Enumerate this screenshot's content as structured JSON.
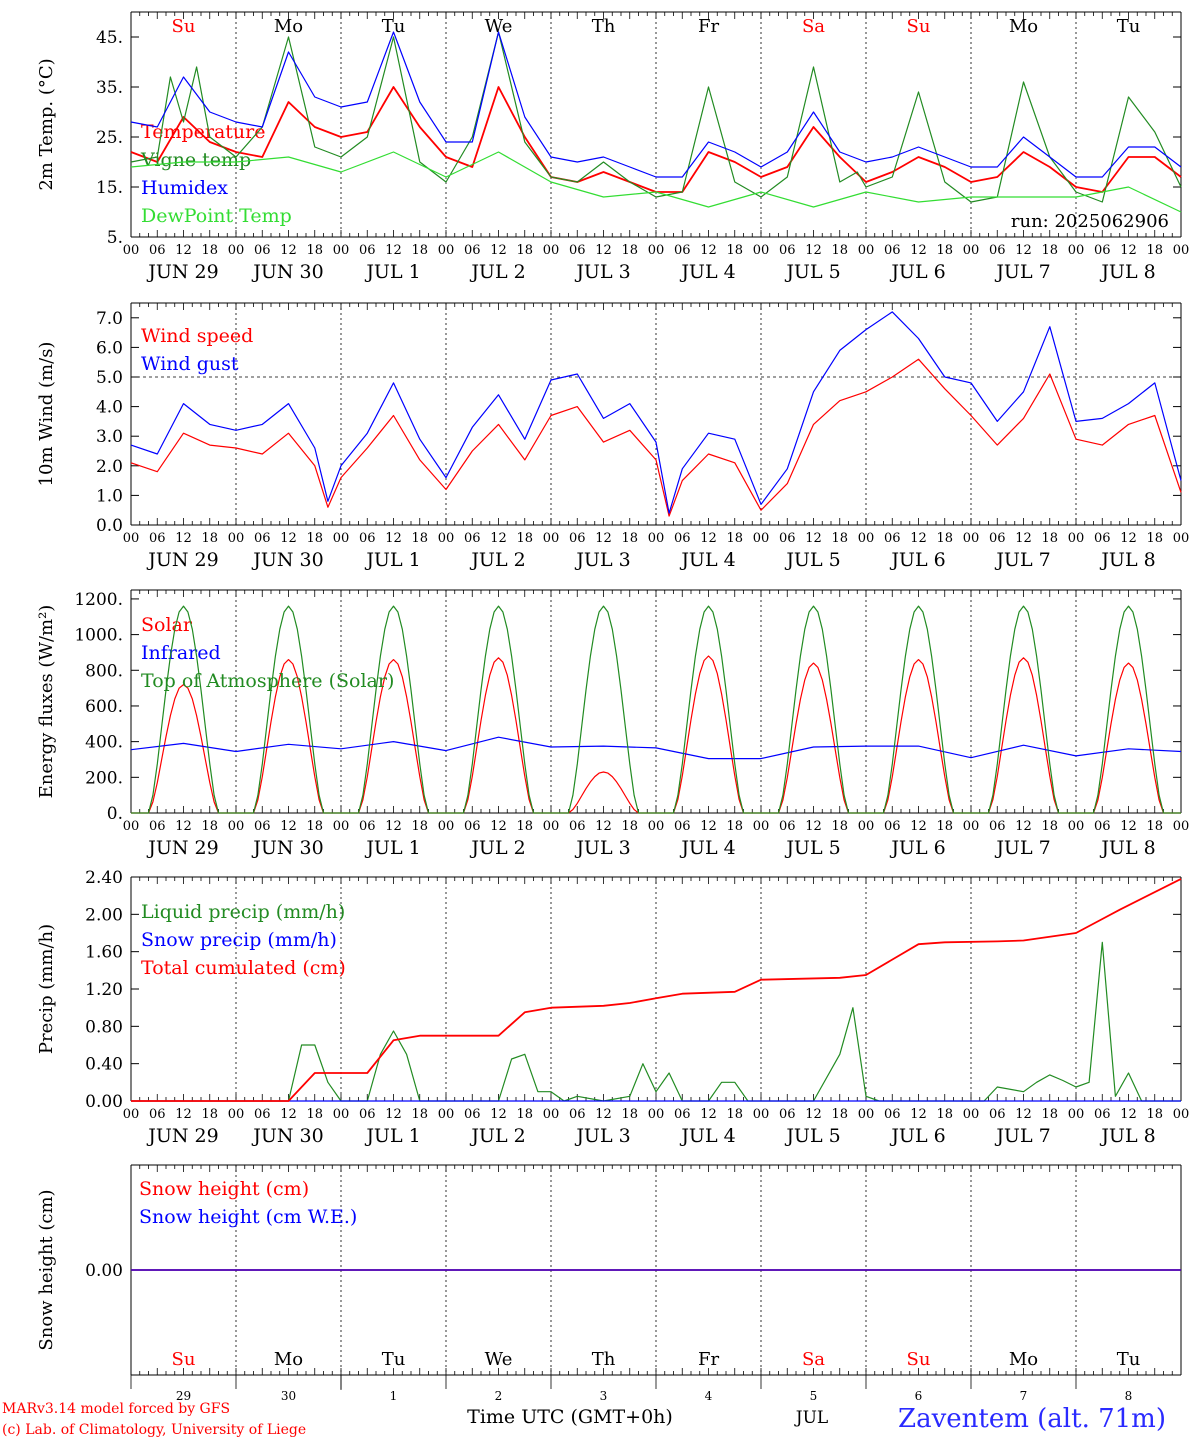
{
  "days": {
    "weekdays": [
      "Su",
      "Mo",
      "Tu",
      "We",
      "Th",
      "Fr",
      "Sa",
      "Su",
      "Mo",
      "Tu"
    ],
    "weekday_colors": [
      "#ff0000",
      "#000000",
      "#000000",
      "#000000",
      "#000000",
      "#000000",
      "#ff0000",
      "#ff0000",
      "#000000",
      "#000000"
    ],
    "date_labels": [
      "JUN 29",
      "JUN 30",
      "JUL  1",
      "JUL  2",
      "JUL  3",
      "JUL  4",
      "JUL  5",
      "JUL  6",
      "JUL  7",
      "JUL  8"
    ],
    "hour_ticks": [
      "00",
      "06",
      "12",
      "18"
    ],
    "final_hour": "00",
    "bottom_day_numbers": [
      "29",
      "30",
      "1",
      "2",
      "3",
      "4",
      "5",
      "6",
      "7",
      "8"
    ]
  },
  "footer": {
    "line1": "MARv3.14 model forced by GFS",
    "line2": "(c) Lab. of Climatology, University of Liege",
    "time_label": "Time UTC (GMT+0h)",
    "month": "JUL",
    "station": "Zaventem (alt. 71m)"
  },
  "colors": {
    "red": "#ff0000",
    "green": "#228b22",
    "blue": "#0000ff",
    "lightgreen": "#33dd33"
  },
  "chart_data": [
    {
      "type": "line",
      "ylabel": "2m Temp. (°C)",
      "ylim": [
        5,
        50
      ],
      "yticks": [
        "5.",
        "15.",
        "25.",
        "35.",
        "45."
      ],
      "ytick_values": [
        5,
        15,
        25,
        35,
        45
      ],
      "annotation": "run: 2025062906",
      "x_unit": "hours since JUN 29 00 UTC",
      "series": [
        {
          "name": "Temperature",
          "color": "#ff0000",
          "x": [
            0,
            6,
            12,
            18,
            24,
            30,
            36,
            42,
            48,
            54,
            60,
            66,
            72,
            78,
            84,
            90,
            96,
            102,
            108,
            114,
            120,
            126,
            132,
            138,
            144,
            150,
            156,
            162,
            168,
            174,
            180,
            186,
            192,
            198,
            204,
            210,
            216,
            222,
            228,
            234,
            240
          ],
          "y": [
            22,
            20,
            29,
            24,
            22,
            21,
            32,
            27,
            25,
            26,
            35,
            27,
            21,
            19,
            35,
            25,
            17,
            16,
            18,
            16,
            14,
            14,
            22,
            20,
            17,
            19,
            27,
            21,
            16,
            18,
            21,
            19,
            16,
            17,
            22,
            19,
            15,
            14,
            21,
            21,
            17
          ]
        },
        {
          "name": "Vigne temp",
          "color": "#228b22",
          "x": [
            0,
            6,
            9,
            12,
            15,
            18,
            24,
            30,
            36,
            42,
            48,
            54,
            60,
            66,
            72,
            78,
            84,
            90,
            96,
            102,
            108,
            114,
            120,
            126,
            132,
            138,
            144,
            150,
            156,
            162,
            166,
            168,
            174,
            180,
            186,
            192,
            198,
            204,
            210,
            216,
            222,
            228,
            234,
            240
          ],
          "y": [
            20,
            21,
            37,
            28,
            39,
            25,
            21,
            27,
            45,
            23,
            21,
            25,
            45,
            20,
            16,
            25,
            46,
            24,
            17,
            16,
            20,
            16,
            13,
            14,
            35,
            16,
            13,
            17,
            39,
            16,
            18,
            15,
            17,
            34,
            16,
            12,
            13,
            36,
            21,
            14,
            12,
            33,
            26,
            15
          ]
        },
        {
          "name": "Humidex",
          "color": "#0000ff",
          "x": [
            0,
            6,
            12,
            18,
            24,
            30,
            36,
            42,
            48,
            54,
            60,
            66,
            72,
            78,
            84,
            90,
            96,
            102,
            108,
            114,
            120,
            126,
            132,
            138,
            144,
            150,
            156,
            162,
            168,
            174,
            180,
            186,
            192,
            198,
            204,
            210,
            216,
            222,
            228,
            234,
            240
          ],
          "y": [
            28,
            27,
            37,
            30,
            28,
            27,
            42,
            33,
            31,
            32,
            46,
            32,
            24,
            24,
            46,
            29,
            21,
            20,
            21,
            19,
            17,
            17,
            24,
            22,
            19,
            22,
            30,
            22,
            20,
            21,
            23,
            21,
            19,
            19,
            25,
            21,
            17,
            17,
            23,
            23,
            19
          ]
        },
        {
          "name": "DewPoint Temp",
          "color": "#33dd33",
          "x": [
            0,
            12,
            24,
            36,
            48,
            60,
            72,
            84,
            96,
            108,
            120,
            132,
            144,
            156,
            168,
            180,
            192,
            204,
            216,
            228,
            240
          ],
          "y": [
            19,
            20,
            20,
            21,
            18,
            22,
            17,
            22,
            16,
            13,
            14,
            11,
            14,
            11,
            14,
            12,
            13,
            13,
            13,
            15,
            10
          ]
        }
      ]
    },
    {
      "type": "line",
      "ylabel": "10m Wind (m/s)",
      "ylim": [
        0,
        7.5
      ],
      "yticks": [
        "0.0",
        "1.0",
        "2.0",
        "3.0",
        "4.0",
        "5.0",
        "6.0",
        "7.0"
      ],
      "ytick_values": [
        0,
        1,
        2,
        3,
        4,
        5,
        6,
        7
      ],
      "reference_line": 5.0,
      "x_unit": "hours since JUN 29 00 UTC",
      "series": [
        {
          "name": "Wind speed",
          "color": "#ff0000",
          "x": [
            0,
            6,
            12,
            18,
            24,
            30,
            36,
            42,
            45,
            48,
            54,
            60,
            66,
            72,
            78,
            84,
            90,
            96,
            102,
            108,
            114,
            120,
            123,
            126,
            132,
            138,
            144,
            150,
            156,
            162,
            168,
            174,
            180,
            186,
            192,
            198,
            204,
            210,
            216,
            222,
            228,
            234,
            240
          ],
          "y": [
            2.1,
            1.8,
            3.1,
            2.7,
            2.6,
            2.4,
            3.1,
            2.0,
            0.6,
            1.6,
            2.6,
            3.7,
            2.2,
            1.2,
            2.5,
            3.4,
            2.2,
            3.7,
            4.0,
            2.8,
            3.2,
            2.2,
            0.3,
            1.5,
            2.4,
            2.1,
            0.5,
            1.4,
            3.4,
            4.2,
            4.5,
            5.0,
            5.6,
            4.6,
            3.7,
            2.7,
            3.6,
            5.1,
            2.9,
            2.7,
            3.4,
            3.7,
            1.1
          ]
        },
        {
          "name": "Wind gust",
          "color": "#0000ff",
          "x": [
            0,
            6,
            12,
            18,
            24,
            30,
            36,
            42,
            45,
            48,
            54,
            60,
            66,
            72,
            78,
            84,
            90,
            96,
            102,
            108,
            114,
            120,
            123,
            126,
            132,
            138,
            144,
            150,
            156,
            162,
            168,
            174,
            180,
            186,
            192,
            198,
            204,
            210,
            216,
            222,
            228,
            234,
            240
          ],
          "y": [
            2.7,
            2.4,
            4.1,
            3.4,
            3.2,
            3.4,
            4.1,
            2.6,
            0.8,
            2.0,
            3.1,
            4.8,
            2.9,
            1.6,
            3.3,
            4.4,
            2.9,
            4.9,
            5.1,
            3.6,
            4.1,
            2.8,
            0.4,
            1.9,
            3.1,
            2.9,
            0.7,
            1.9,
            4.5,
            5.9,
            6.6,
            7.2,
            6.3,
            5.0,
            4.8,
            3.5,
            4.5,
            6.7,
            3.5,
            3.6,
            4.1,
            4.8,
            1.5
          ]
        }
      ]
    },
    {
      "type": "line",
      "ylabel": "Energy fluxes (W/m²)",
      "ylim": [
        0,
        1250
      ],
      "yticks": [
        "0.",
        "200.",
        "400.",
        "600.",
        "800.",
        "1000.",
        "1200."
      ],
      "ytick_values": [
        0,
        200,
        400,
        600,
        800,
        1000,
        1200
      ],
      "x_unit": "hours since JUN 29 00 UTC",
      "series": [
        {
          "name": "Solar",
          "color": "#ff0000",
          "day_peaks": [
            720,
            860,
            860,
            870,
            230,
            880,
            840,
            860,
            870,
            840
          ]
        },
        {
          "name": "Infrared",
          "color": "#0000ff",
          "x": [
            0,
            12,
            24,
            36,
            48,
            60,
            72,
            84,
            96,
            108,
            120,
            132,
            144,
            156,
            168,
            180,
            192,
            204,
            216,
            228,
            240
          ],
          "y": [
            355,
            390,
            345,
            385,
            360,
            400,
            350,
            425,
            370,
            375,
            365,
            305,
            305,
            370,
            375,
            375,
            310,
            380,
            320,
            360,
            345
          ]
        },
        {
          "name": "Top of Atmosphere (Solar)",
          "color": "#228b22",
          "day_peaks": [
            1160,
            1160,
            1160,
            1160,
            1160,
            1160,
            1160,
            1160,
            1160,
            1160
          ]
        }
      ]
    },
    {
      "type": "line",
      "ylabel": "Precip (mm/h)",
      "ylim": [
        0,
        2.4
      ],
      "yticks": [
        "0.00",
        "0.40",
        "0.80",
        "1.20",
        "1.60",
        "2.00",
        "2.40"
      ],
      "ytick_values": [
        0,
        0.4,
        0.8,
        1.2,
        1.6,
        2.0,
        2.4
      ],
      "x_unit": "hours since JUN 29 00 UTC",
      "series": [
        {
          "name": "Liquid precip (mm/h)",
          "color": "#228b22",
          "x": [
            0,
            36,
            39,
            42,
            45,
            48,
            54,
            57,
            60,
            63,
            66,
            84,
            87,
            90,
            93,
            96,
            99,
            102,
            108,
            114,
            117,
            120,
            123,
            126,
            132,
            135,
            138,
            141,
            156,
            162,
            165,
            168,
            171,
            174,
            186,
            195,
            198,
            204,
            207,
            210,
            213,
            216,
            219,
            222,
            225,
            228,
            231,
            234,
            240
          ],
          "y": [
            0,
            0,
            0.6,
            0.6,
            0.2,
            0,
            0,
            0.5,
            0.75,
            0.5,
            0,
            0,
            0.45,
            0.5,
            0.1,
            0.1,
            0,
            0.05,
            0,
            0.05,
            0.4,
            0.1,
            0.3,
            0,
            0,
            0.2,
            0.2,
            0,
            0,
            0.5,
            1.0,
            0.05,
            0,
            0,
            0,
            0,
            0.15,
            0.1,
            0.2,
            0.28,
            0.22,
            0.15,
            0.2,
            1.7,
            0.05,
            0.3,
            0,
            0,
            0
          ]
        },
        {
          "name": "Snow precip (mm/h)",
          "color": "#0000ff",
          "x": [
            0,
            240
          ],
          "y": [
            0,
            0
          ]
        },
        {
          "name": "Total cumulated (cm)",
          "color": "#ff0000",
          "x": [
            0,
            36,
            42,
            54,
            60,
            66,
            84,
            90,
            96,
            108,
            114,
            120,
            126,
            138,
            144,
            162,
            168,
            180,
            186,
            198,
            204,
            216,
            222,
            226,
            240
          ],
          "y": [
            0,
            0,
            0.3,
            0.3,
            0.65,
            0.7,
            0.7,
            0.95,
            1.0,
            1.02,
            1.05,
            1.1,
            1.15,
            1.17,
            1.3,
            1.32,
            1.35,
            1.68,
            1.7,
            1.71,
            1.72,
            1.8,
            1.95,
            2.05,
            2.38
          ]
        }
      ]
    },
    {
      "type": "line",
      "ylabel": "Snow height (cm)",
      "ylim": [
        -1,
        1
      ],
      "yticks": [
        "0.00"
      ],
      "ytick_values": [
        0
      ],
      "x_unit": "hours since JUN 29 00 UTC",
      "series": [
        {
          "name": "Snow height (cm)",
          "color": "#ff0000",
          "x": [
            0,
            240
          ],
          "y": [
            0,
            0
          ]
        },
        {
          "name": "Snow height (cm W.E.)",
          "color": "#0000ff",
          "x": [
            0,
            240
          ],
          "y": [
            0,
            0
          ]
        }
      ]
    }
  ]
}
